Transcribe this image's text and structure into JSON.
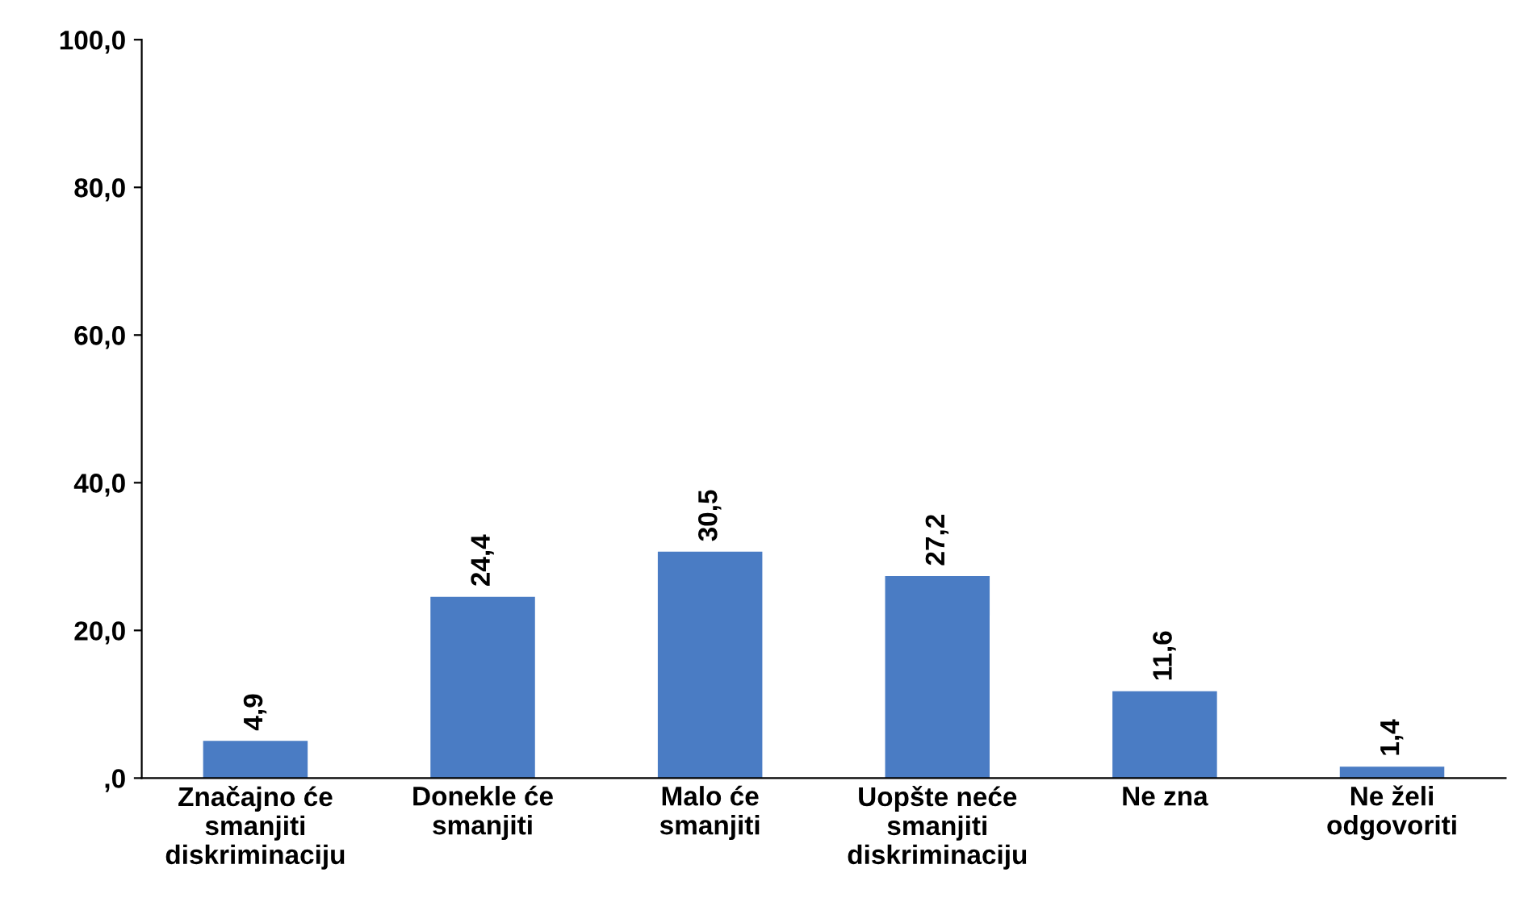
{
  "chart_data": {
    "type": "bar",
    "categories": [
      "Značajno će\nsmanjiti\ndiskriminaciju",
      "Donekle će\nsmanjiti",
      "Malo će\nsmanjiti",
      "Uopšte neće\nsmanjiti\ndiskriminaciju",
      "Ne zna",
      "Ne želi\nodgovoriti"
    ],
    "values": [
      4.9,
      24.4,
      30.5,
      27.2,
      11.6,
      1.4
    ],
    "value_labels": [
      "4,9",
      "24,4",
      "30,5",
      "27,2",
      "11,6",
      "1,4"
    ],
    "color": "#4a7cc4",
    "ylim": [
      0,
      100
    ],
    "yticks": [
      {
        "value": 0,
        "label": ",0"
      },
      {
        "value": 20,
        "label": "20,0"
      },
      {
        "value": 40,
        "label": "40,0"
      },
      {
        "value": 60,
        "label": "60,0"
      },
      {
        "value": 80,
        "label": "80,0"
      },
      {
        "value": 100,
        "label": "100,0"
      }
    ],
    "grid": false
  }
}
